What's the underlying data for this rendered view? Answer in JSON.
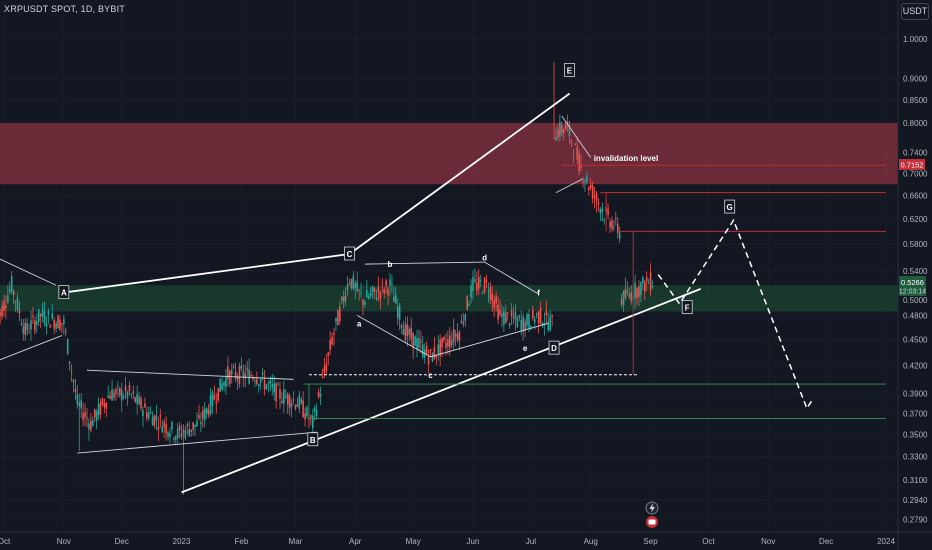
{
  "header": {
    "symbol": "XRPUSDT SPOT, 1D, BYBIT",
    "currency": "USDT"
  },
  "price_label": {
    "price": "0.5266",
    "countdown": "12:03:14"
  },
  "invalidation_price": "0.7152",
  "icons": {
    "flash": "lightning-icon",
    "event": "event-icon"
  },
  "colors": {
    "up": "#26a69a",
    "down": "#ef5350",
    "line": "#ffffff",
    "resistance": "#b23a48",
    "support": "#1e5a3a",
    "background": "#131722"
  },
  "chart_data": {
    "type": "candlestick",
    "symbol": "XRPUSDT",
    "timeframe": "1D",
    "exchange": "BYBIT",
    "y_scale": "log",
    "ylim": [
      0.275,
      1.05
    ],
    "y_ticks": [
      "1.0000",
      "0.9000",
      "0.8500",
      "0.8000",
      "0.7400",
      "0.7000",
      "0.6600",
      "0.6200",
      "0.5800",
      "0.5400",
      "0.5000",
      "0.4800",
      "0.4500",
      "0.4200",
      "0.3900",
      "0.3700",
      "0.3500",
      "0.3300",
      "0.3100",
      "0.2940",
      "0.2790"
    ],
    "y_tick_values": [
      1.0,
      0.9,
      0.85,
      0.8,
      0.74,
      0.7,
      0.66,
      0.62,
      0.58,
      0.54,
      0.5,
      0.48,
      0.45,
      0.42,
      0.39,
      0.37,
      0.35,
      0.33,
      0.31,
      0.294,
      0.279
    ],
    "x_ticks": [
      "Oct",
      "Nov",
      "Dec",
      "2023",
      "Feb",
      "Mar",
      "Apr",
      "May",
      "Jun",
      "Jul",
      "Aug",
      "Sep",
      "Oct",
      "Nov",
      "Dec",
      "2024"
    ],
    "x_tick_dates": [
      "2022-10-01",
      "2022-11-01",
      "2022-12-01",
      "2023-01-01",
      "2023-02-01",
      "2023-03-01",
      "2023-04-01",
      "2023-05-01",
      "2023-06-01",
      "2023-07-01",
      "2023-08-01",
      "2023-09-01",
      "2023-10-01",
      "2023-11-01",
      "2023-12-01",
      "2024-01-01"
    ],
    "last_price": 0.5266,
    "zones": [
      {
        "type": "resistance",
        "from": 0.68,
        "to": 0.8
      },
      {
        "type": "support",
        "from": 0.485,
        "to": 0.52
      }
    ],
    "levels": [
      {
        "label": "invalidation level",
        "value": 0.7152
      },
      {
        "value": 0.665
      },
      {
        "value": 0.6
      },
      {
        "value": 0.41
      },
      {
        "value": 0.4
      },
      {
        "value": 0.365
      }
    ],
    "wave_labels": [
      {
        "label": "A",
        "date": "2022-11-01",
        "price": 0.51
      },
      {
        "label": "B",
        "date": "2023-03-10",
        "price": 0.345
      },
      {
        "label": "C",
        "date": "2023-03-29",
        "price": 0.565
      },
      {
        "label": "a",
        "date": "2023-04-03",
        "price": 0.47
      },
      {
        "label": "b",
        "date": "2023-04-19",
        "price": 0.55
      },
      {
        "label": "c",
        "date": "2023-05-10",
        "price": 0.41
      },
      {
        "label": "d",
        "date": "2023-06-07",
        "price": 0.56
      },
      {
        "label": "e",
        "date": "2023-06-28",
        "price": 0.44
      },
      {
        "label": "f",
        "date": "2023-07-05",
        "price": 0.51
      },
      {
        "label": "D",
        "date": "2023-07-13",
        "price": 0.44
      },
      {
        "label": "E",
        "date": "2023-07-21",
        "price": 0.92
      },
      {
        "label": "F",
        "date": "2023-09-20",
        "price": 0.49
      },
      {
        "label": "G",
        "date": "2023-10-12",
        "price": 0.64
      }
    ],
    "trendlines": [
      {
        "from": [
          "2022-11-01",
          0.51
        ],
        "to": [
          "2023-03-29",
          0.565
        ]
      },
      {
        "from": [
          "2023-03-29",
          0.565
        ],
        "to": [
          "2023-07-21",
          0.865
        ]
      },
      {
        "from": [
          "2023-01-01",
          0.3
        ],
        "to": [
          "2023-09-27",
          0.515
        ]
      }
    ],
    "projection": [
      [
        "2023-09-05",
        0.535
      ],
      [
        "2023-09-16",
        0.495
      ],
      [
        "2023-10-14",
        0.618
      ],
      [
        "2023-11-21",
        0.375
      ],
      [
        "2023-11-24",
        0.384
      ]
    ],
    "annotations": [
      "invalidation level"
    ]
  }
}
